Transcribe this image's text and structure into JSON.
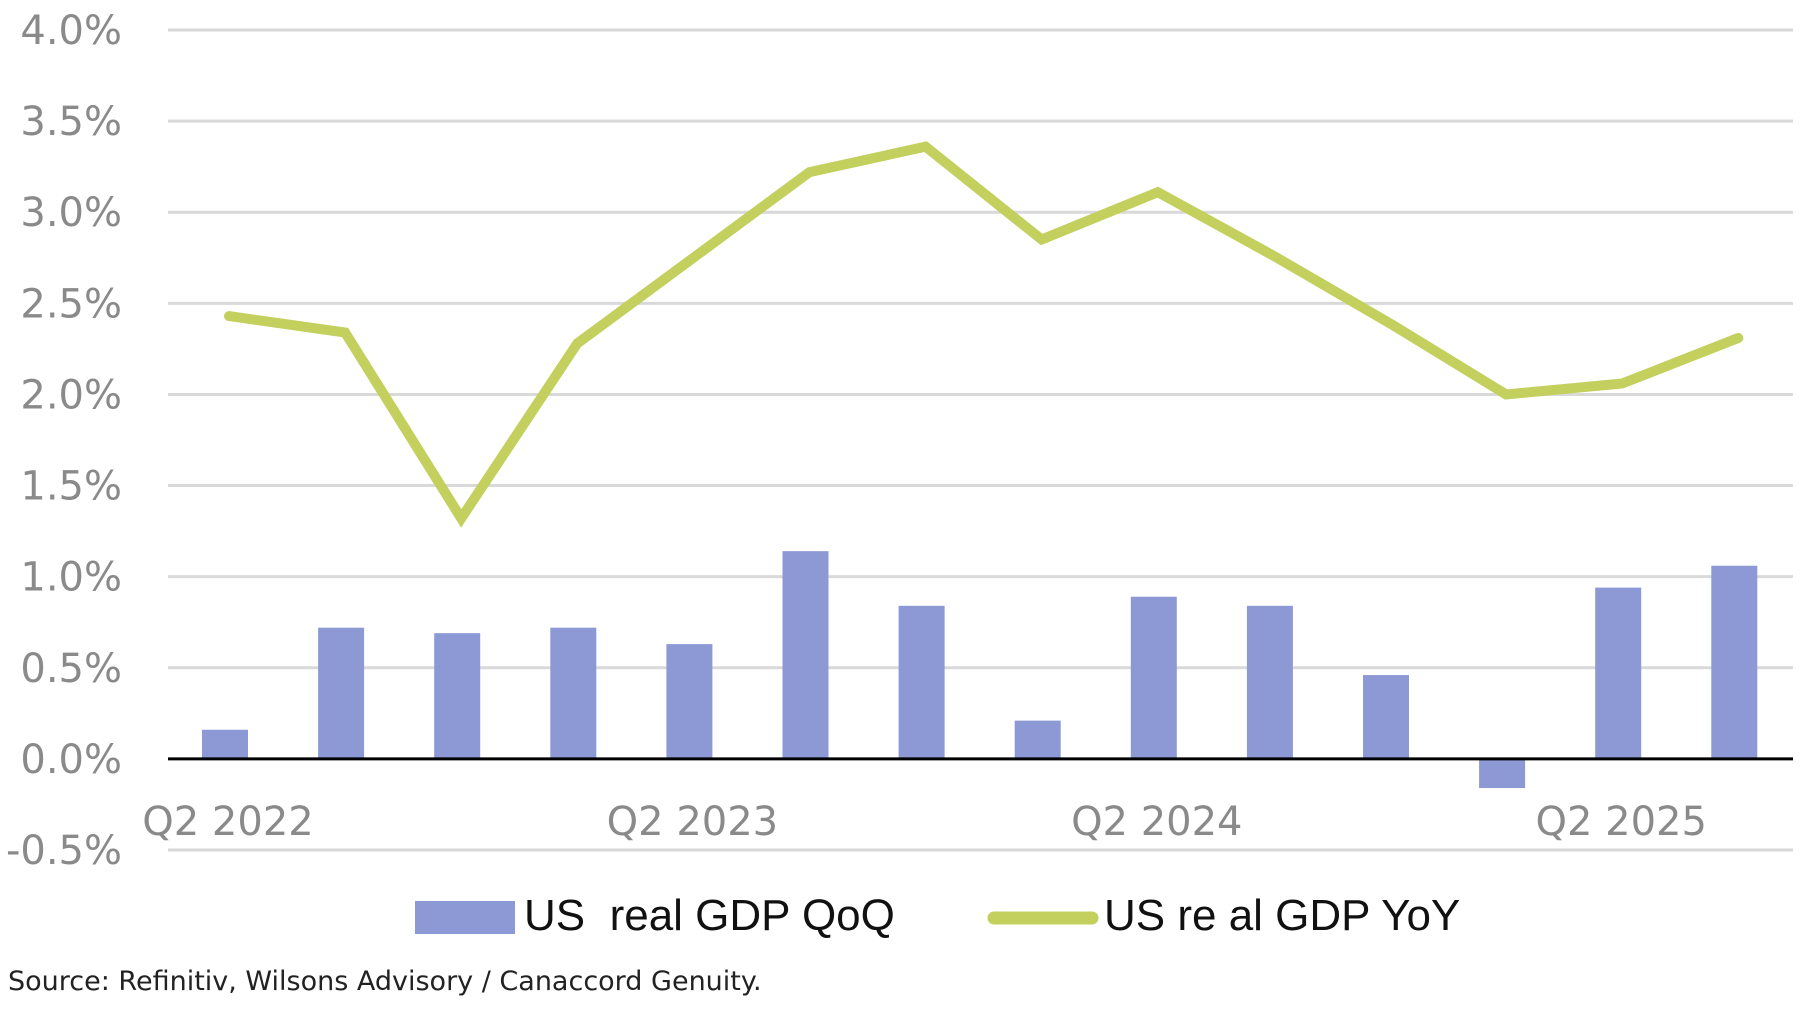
{
  "chart_data": {
    "type": "bar+line",
    "title": "",
    "xlabel": "",
    "ylabel": "",
    "ylim": [
      -0.5,
      4.0
    ],
    "yticks": [
      -0.5,
      0.0,
      0.5,
      1.0,
      1.5,
      2.0,
      2.5,
      3.0,
      3.5,
      4.0
    ],
    "ytick_labels": [
      "-0.5%",
      "0.0%",
      "0.5%",
      "1.0%",
      "1.5%",
      "2.0%",
      "2.5%",
      "3.0%",
      "3.5%",
      "4.0%"
    ],
    "grid": true,
    "categories": [
      "Q2 2022",
      "Q3 2022",
      "Q4 2022",
      "Q1 2023",
      "Q2 2023",
      "Q3 2023",
      "Q4 2023",
      "Q1 2024",
      "Q2 2024",
      "Q3 2024",
      "Q4 2024",
      "Q1 2025",
      "Q2 2025",
      "Q3 2025"
    ],
    "xtick_labels": [
      {
        "index": 0,
        "label": "Q2 2022"
      },
      {
        "index": 4,
        "label": "Q2 2023"
      },
      {
        "index": 8,
        "label": "Q2 2024"
      },
      {
        "index": 12,
        "label": "Q2 2025"
      }
    ],
    "series": [
      {
        "name": "US  real GDP QoQ",
        "type": "bar",
        "color": "#8c99d4",
        "values": [
          0.16,
          0.72,
          0.69,
          0.72,
          0.63,
          1.14,
          0.84,
          0.21,
          0.89,
          0.84,
          0.46,
          -0.16,
          0.94,
          1.06
        ]
      },
      {
        "name": "US re al GDP YoY",
        "type": "line",
        "color": "#c3d05e",
        "values": [
          2.43,
          2.34,
          1.32,
          2.28,
          2.75,
          3.22,
          3.36,
          2.85,
          3.11,
          2.76,
          2.39,
          2.0,
          2.06,
          2.31
        ]
      }
    ],
    "legend_position": "bottom",
    "source": "Source: Refinitiv, Wilsons Advisory / Canaccord Genuity."
  }
}
